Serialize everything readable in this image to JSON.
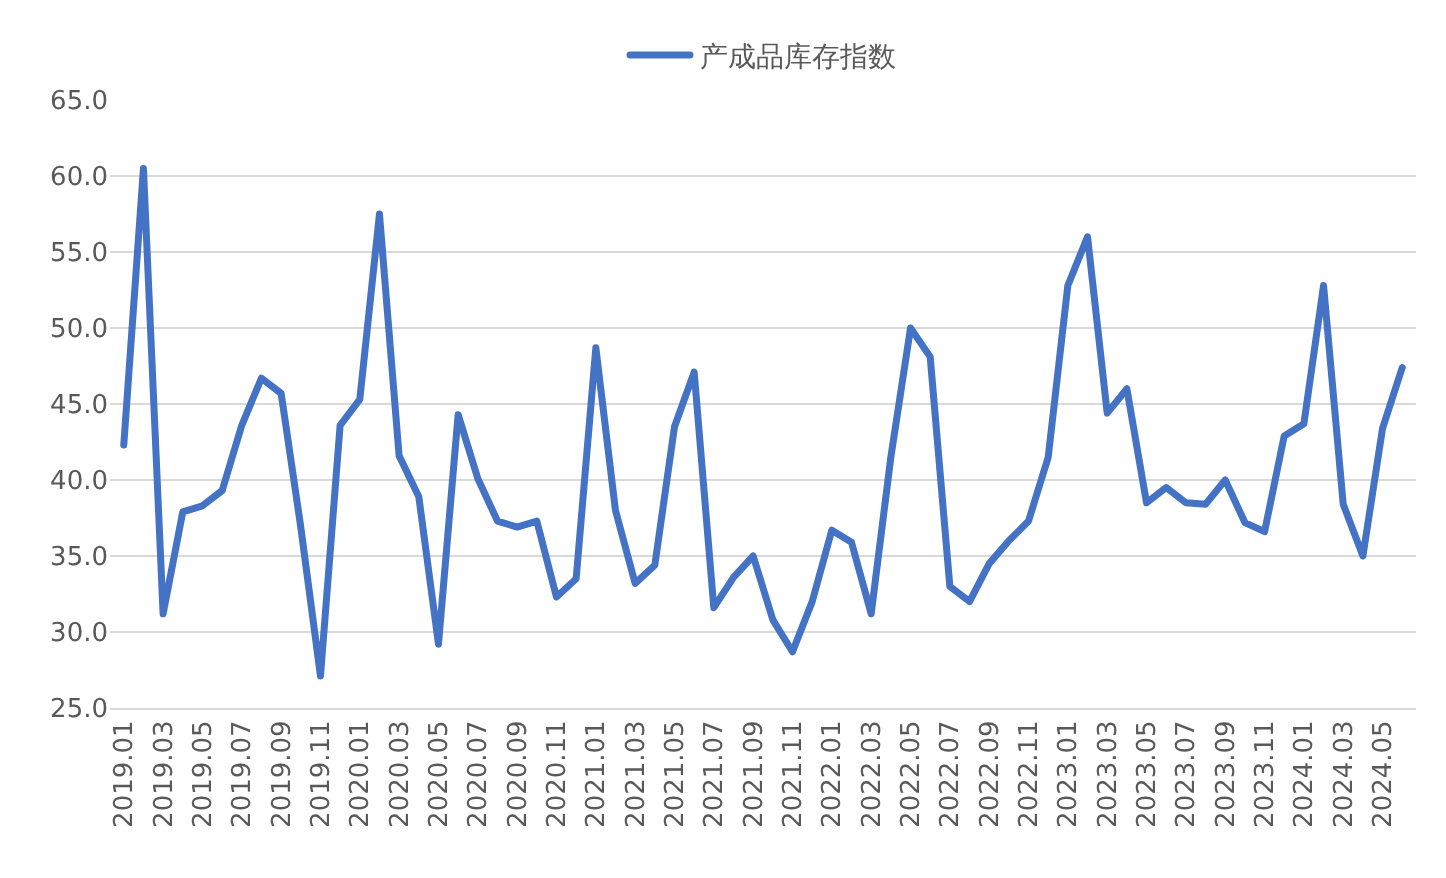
{
  "chart_data": {
    "type": "line",
    "categories": [
      "2019.01",
      null,
      "2019.03",
      null,
      "2019.05",
      null,
      "2019.07",
      null,
      "2019.09",
      null,
      "2019.11",
      null,
      "2020.01",
      null,
      "2020.03",
      null,
      "2020.05",
      null,
      "2020.07",
      null,
      "2020.09",
      null,
      "2020.11",
      null,
      "2021.01",
      null,
      "2021.03",
      null,
      "2021.05",
      null,
      "2021.07",
      null,
      "2021.09",
      null,
      "2021.11",
      null,
      "2022.01",
      null,
      "2022.03",
      null,
      "2022.05",
      null,
      "2022.07",
      null,
      "2022.09",
      null,
      "2022.11",
      null,
      "2023.01",
      null,
      "2023.03",
      null,
      "2023.05",
      null,
      "2023.07",
      null,
      "2023.09",
      null,
      "2023.11",
      null,
      "2024.01",
      null,
      "2024.03",
      null,
      "2024.05",
      null
    ],
    "series": [
      {
        "name": "产成品库存指数",
        "color": "#4472c4",
        "values": [
          42.3,
          60.5,
          31.2,
          37.9,
          38.3,
          39.3,
          43.6,
          46.7,
          45.7,
          36.9,
          27.1,
          43.6,
          45.3,
          57.5,
          41.6,
          38.9,
          29.2,
          44.3,
          40.1,
          37.3,
          36.9,
          37.3,
          32.3,
          33.5,
          48.7,
          38.0,
          33.2,
          34.4,
          43.5,
          47.1,
          31.6,
          33.6,
          35.0,
          30.8,
          28.7,
          32.0,
          36.7,
          35.9,
          31.2,
          41.5,
          50.0,
          48.1,
          33.0,
          32.0,
          34.5,
          36.0,
          37.3,
          41.5,
          52.8,
          56.0,
          44.4,
          46.0,
          38.5,
          39.5,
          38.5,
          38.4,
          40.0,
          37.2,
          36.6,
          42.9,
          43.7,
          52.8,
          38.4,
          35.0,
          43.4,
          47.4
        ]
      }
    ],
    "ylim": [
      25,
      65
    ],
    "yticks": [
      {
        "value": 25,
        "label": "25.0"
      },
      {
        "value": 30,
        "label": "30.0"
      },
      {
        "value": 35,
        "label": "35.0"
      },
      {
        "value": 40,
        "label": "40.0"
      },
      {
        "value": 45,
        "label": "45.0"
      },
      {
        "value": 50,
        "label": "50.0"
      },
      {
        "value": 55,
        "label": "55.0"
      },
      {
        "value": 60,
        "label": "60.0"
      },
      {
        "value": 65,
        "label": "65.0"
      }
    ],
    "grid": "y",
    "legend": "top",
    "marker": "none",
    "line_style": "solid"
  }
}
